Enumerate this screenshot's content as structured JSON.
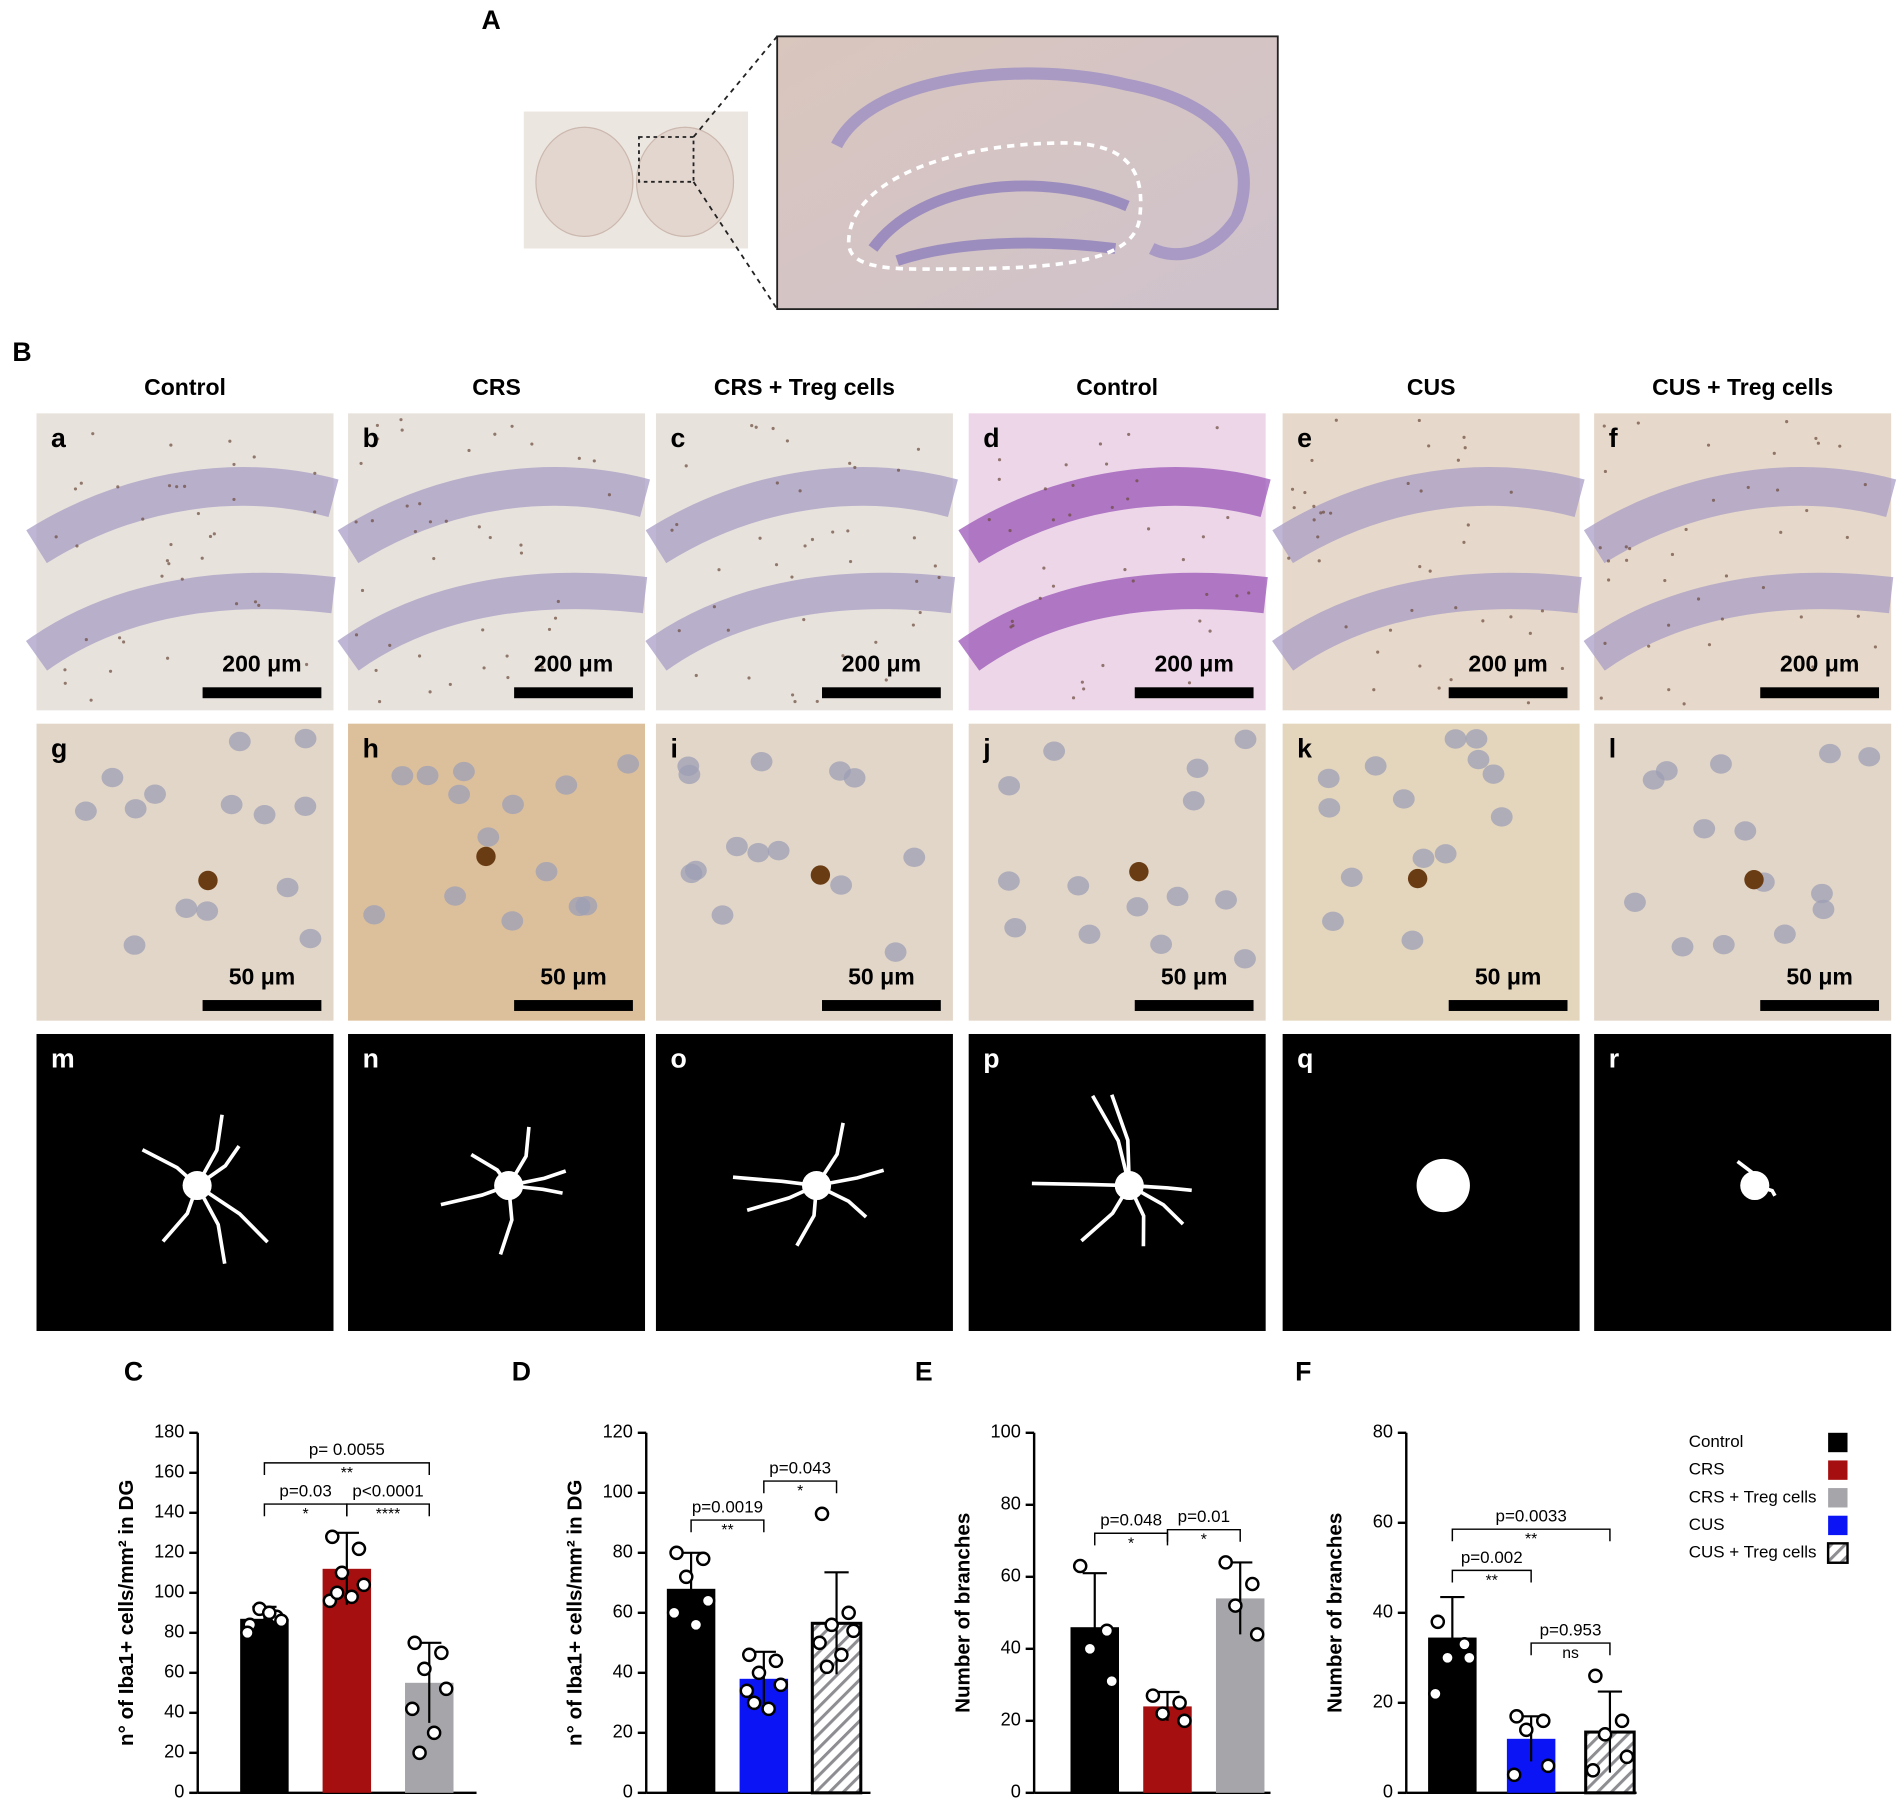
{
  "panels": {
    "A": {
      "label": "A"
    },
    "B": {
      "label": "B",
      "columns": [
        "Control",
        "CRS",
        "CRS + Treg cells",
        "Control",
        "CUS",
        "CUS + Treg cells"
      ],
      "rows": [
        [
          {
            "letter": "a",
            "scale": "200 μm"
          },
          {
            "letter": "b",
            "scale": "200 μm"
          },
          {
            "letter": "c",
            "scale": "200 μm"
          },
          {
            "letter": "d",
            "scale": "200 μm"
          },
          {
            "letter": "e",
            "scale": "200 μm"
          },
          {
            "letter": "f",
            "scale": "200 μm"
          }
        ],
        [
          {
            "letter": "g",
            "scale": "50 μm"
          },
          {
            "letter": "h",
            "scale": "50 μm"
          },
          {
            "letter": "i",
            "scale": "50 μm"
          },
          {
            "letter": "j",
            "scale": "50 μm"
          },
          {
            "letter": "k",
            "scale": "50 μm"
          },
          {
            "letter": "l",
            "scale": "50 μm"
          }
        ],
        [
          {
            "letter": "m"
          },
          {
            "letter": "n"
          },
          {
            "letter": "o"
          },
          {
            "letter": "p"
          },
          {
            "letter": "q"
          },
          {
            "letter": "r"
          }
        ]
      ]
    }
  },
  "legend": [
    {
      "name": "Control",
      "color": "#000000"
    },
    {
      "name": "CRS",
      "color": "#a50f0f"
    },
    {
      "name": "CRS + Treg cells",
      "color": "#a6a6aa"
    },
    {
      "name": "CUS",
      "color": "#0a14f5"
    },
    {
      "name": "CUS + Treg cells",
      "color": "#a6a6aa",
      "hatch": true
    }
  ],
  "chart_data": [
    {
      "type": "bar",
      "label": "C",
      "y_label": "n° of Iba1+ cells/mm² in DG",
      "ylim": [
        0,
        180
      ],
      "yticks": [
        0,
        20,
        40,
        60,
        80,
        100,
        120,
        140,
        160,
        180
      ],
      "values": [
        87,
        112,
        55
      ],
      "errors": [
        6,
        18,
        20
      ],
      "points": [
        [
          84,
          88,
          92,
          86,
          80,
          90
        ],
        [
          128,
          122,
          110,
          104,
          96,
          98,
          100
        ],
        [
          75,
          70,
          62,
          52,
          42,
          30,
          20
        ]
      ],
      "colors": [
        "#000000",
        "#a50f0f",
        "#a6a6aa"
      ],
      "hatch": [
        false,
        false,
        false
      ],
      "comparisons": [
        {
          "from": 0,
          "to": 1,
          "p": "p=0.03",
          "stars": "*"
        },
        {
          "from": 1,
          "to": 2,
          "p": "p<0.0001",
          "stars": "****"
        },
        {
          "from": 0,
          "to": 2,
          "p": "p= 0.0055",
          "stars": "**"
        }
      ]
    },
    {
      "type": "bar",
      "label": "D",
      "y_label": "n° of Iba1+ cells/mm² in DG",
      "ylim": [
        0,
        120
      ],
      "yticks": [
        0,
        20,
        40,
        60,
        80,
        100,
        120
      ],
      "values": [
        68,
        38,
        56.5
      ],
      "errors": [
        12,
        9,
        17
      ],
      "points": [
        [
          80,
          78,
          72,
          64,
          60,
          56
        ],
        [
          46,
          44,
          40,
          36,
          34,
          28,
          30
        ],
        [
          93,
          60,
          56,
          54,
          50,
          46,
          42
        ]
      ],
      "colors": [
        "#000000",
        "#0a14f5",
        "#a6a6aa"
      ],
      "hatch": [
        false,
        false,
        true
      ],
      "comparisons": [
        {
          "from": 0,
          "to": 1,
          "p": "p=0.0019",
          "stars": "**"
        },
        {
          "from": 1,
          "to": 2,
          "p": "p=0.043",
          "stars": "*"
        }
      ]
    },
    {
      "type": "bar",
      "label": "E",
      "y_label": "Number of branches",
      "ylim": [
        0,
        100
      ],
      "yticks": [
        0,
        20,
        40,
        60,
        80,
        100
      ],
      "values": [
        46,
        24,
        54
      ],
      "errors": [
        15,
        4,
        10
      ],
      "points": [
        [
          63,
          45,
          40,
          31
        ],
        [
          27,
          25,
          22,
          20
        ],
        [
          64,
          58,
          52,
          44
        ]
      ],
      "colors": [
        "#000000",
        "#a50f0f",
        "#a6a6aa"
      ],
      "hatch": [
        false,
        false,
        false
      ],
      "comparisons": [
        {
          "from": 0,
          "to": 1,
          "p": "p=0.048",
          "stars": "*"
        },
        {
          "from": 1,
          "to": 2,
          "p": "p=0.01",
          "stars": "*"
        }
      ]
    },
    {
      "type": "bar",
      "label": "F",
      "y_label": "Number of branches",
      "ylim": [
        0,
        80
      ],
      "yticks": [
        0,
        20,
        40,
        60,
        80
      ],
      "values": [
        34.5,
        12,
        13.5
      ],
      "errors": [
        9,
        5,
        9
      ],
      "points": [
        [
          38,
          33,
          30,
          30,
          22
        ],
        [
          17,
          16,
          14,
          6,
          4
        ],
        [
          26,
          16,
          13,
          8,
          5
        ]
      ],
      "colors": [
        "#000000",
        "#0a14f5",
        "#a6a6aa"
      ],
      "hatch": [
        false,
        false,
        true
      ],
      "comparisons": [
        {
          "from": 1,
          "to": 2,
          "p": "p=0.953",
          "stars": "ns"
        },
        {
          "from": 0,
          "to": 1,
          "p": "p=0.002",
          "stars": "**"
        },
        {
          "from": 0,
          "to": 2,
          "p": "p=0.0033",
          "stars": "**"
        }
      ]
    }
  ]
}
